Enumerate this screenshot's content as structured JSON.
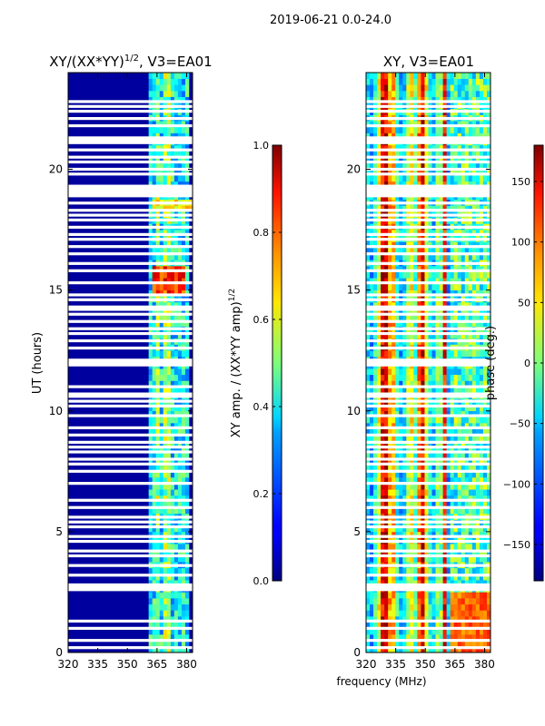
{
  "suptitle": "2019-06-21 0.0-24.0",
  "xlabel": "frequency (MHz)",
  "chart_data": [
    {
      "type": "heatmap",
      "title": "XY/(XX*YY)",
      "title_sup": "1/2",
      "title_suffix": ", V3=EA01",
      "xlabel": "",
      "ylabel": "UT (hours)",
      "xlim": [
        320,
        383
      ],
      "ylim": [
        0,
        24
      ],
      "xticks": [
        320,
        335,
        350,
        365,
        380
      ],
      "yticks": [
        0,
        5,
        10,
        15,
        20
      ],
      "colorbar": {
        "label": "XY amp. / (XX*YY amp)",
        "label_sup": "1/2",
        "range": [
          0.0,
          1.0
        ],
        "ticks": [
          "0.0",
          "0.2",
          "0.4",
          "0.6",
          "0.8",
          "1.0"
        ]
      }
    },
    {
      "type": "heatmap",
      "title": "XY, V3=EA01",
      "xlabel": "frequency (MHz)",
      "ylabel": "",
      "xlim": [
        320,
        383
      ],
      "ylim": [
        0,
        24
      ],
      "xticks": [
        320,
        335,
        350,
        365,
        380
      ],
      "yticks": [
        0,
        5,
        10,
        15,
        20
      ],
      "colorbar": {
        "label": "phase (deg.)",
        "range": [
          -180,
          180
        ],
        "ticks": [
          "-150",
          "-100",
          "-50",
          "0",
          "50",
          "100",
          "150"
        ]
      }
    }
  ],
  "flag_rows_hours": [
    0.2,
    0.5,
    1.0,
    1.3,
    2.6,
    2.7,
    2.8,
    3.2,
    3.6,
    4.0,
    4.2,
    4.6,
    4.8,
    5.2,
    5.4,
    5.6,
    6.0,
    6.3,
    7.0,
    7.5,
    7.8,
    8.0,
    8.3,
    8.5,
    8.7,
    9.0,
    9.3,
    9.8,
    10.2,
    10.4,
    10.6,
    10.7,
    11.0,
    11.9,
    12.0,
    12.1,
    12.6,
    12.9,
    13.2,
    13.4,
    13.7,
    14.0,
    14.2,
    14.3,
    14.6,
    14.8,
    15.3,
    15.8,
    16.1,
    16.5,
    16.8,
    17.1,
    17.3,
    17.6,
    17.9,
    18.1,
    18.3,
    18.6,
    18.9,
    19.0,
    19.1,
    19.2,
    19.3,
    19.8,
    20.0,
    20.3,
    20.5,
    20.8,
    21.1,
    21.2,
    21.3,
    21.8,
    22.1,
    22.4,
    22.6,
    22.8
  ]
}
